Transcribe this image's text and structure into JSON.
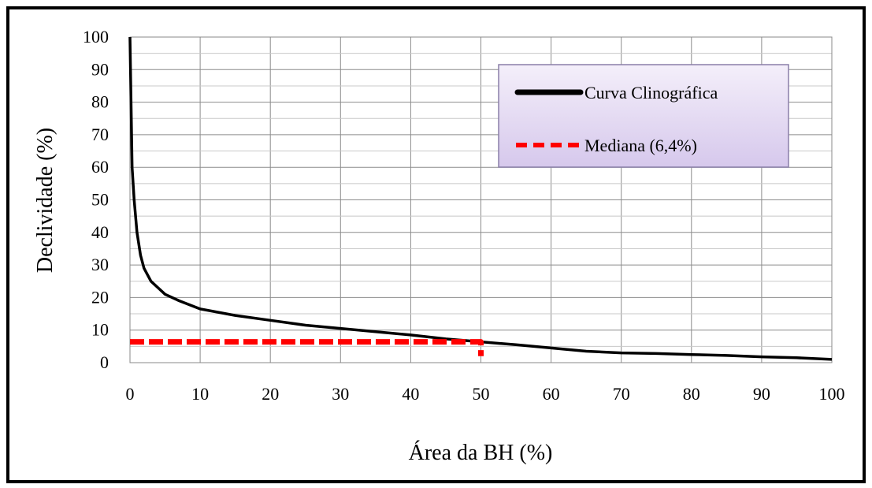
{
  "chart_data": {
    "type": "line",
    "title": "",
    "xlabel": "Área da BH (%)",
    "ylabel": "Declividade (%)",
    "xlim": [
      0,
      100
    ],
    "ylim": [
      0,
      100
    ],
    "xticks": [
      0,
      10,
      20,
      30,
      40,
      50,
      60,
      70,
      80,
      90,
      100
    ],
    "yticks": [
      0,
      10,
      20,
      30,
      40,
      50,
      60,
      70,
      80,
      90,
      100
    ],
    "grid": true,
    "legend_position": "top-right",
    "series": [
      {
        "name": "Curva Clinográfica",
        "color": "#000000",
        "style": "solid",
        "x": [
          0,
          0.3,
          0.6,
          1,
          1.5,
          2,
          3,
          4,
          5,
          7,
          10,
          15,
          20,
          25,
          30,
          35,
          40,
          45,
          50,
          55,
          60,
          65,
          70,
          75,
          80,
          85,
          90,
          95,
          100
        ],
        "y": [
          100,
          60,
          50,
          40,
          33,
          29,
          25,
          23,
          21,
          19,
          16.5,
          14.5,
          13,
          11.5,
          10.5,
          9.5,
          8.5,
          7.3,
          6.4,
          5.5,
          4.5,
          3.5,
          3,
          2.8,
          2.5,
          2.2,
          1.8,
          1.5,
          1
        ]
      },
      {
        "name": "Mediana (6,4%)",
        "color": "#ff0000",
        "style": "dashed",
        "x": [
          0,
          50,
          50
        ],
        "y": [
          6.4,
          6.4,
          2
        ]
      }
    ]
  }
}
